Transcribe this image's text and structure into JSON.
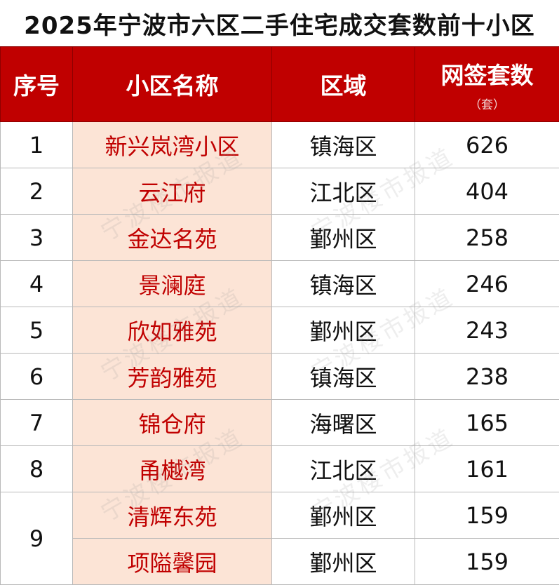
{
  "title": "2025年宁波市六区二手住宅成交套数前十小区",
  "table": {
    "headers": {
      "index": "序号",
      "name": "小区名称",
      "district": "区域",
      "count": "网签套数",
      "count_unit": "（套）"
    },
    "rows": [
      {
        "index": "1",
        "name": "新兴岚湾小区",
        "district": "镇海区",
        "count": "626"
      },
      {
        "index": "2",
        "name": "云江府",
        "district": "江北区",
        "count": "404"
      },
      {
        "index": "3",
        "name": "金达名苑",
        "district": "鄞州区",
        "count": "258"
      },
      {
        "index": "4",
        "name": "景澜庭",
        "district": "镇海区",
        "count": "246"
      },
      {
        "index": "5",
        "name": "欣如雅苑",
        "district": "鄞州区",
        "count": "243"
      },
      {
        "index": "6",
        "name": "芳韵雅苑",
        "district": "镇海区",
        "count": "238"
      },
      {
        "index": "7",
        "name": "锦仓府",
        "district": "海曙区",
        "count": "165"
      },
      {
        "index": "8",
        "name": "甬樾湾",
        "district": "江北区",
        "count": "161"
      },
      {
        "index": "9",
        "name": "清辉东苑",
        "district": "鄞州区",
        "count": "159"
      },
      {
        "index": "",
        "name": "项隘馨园",
        "district": "鄞州区",
        "count": "159"
      }
    ]
  },
  "watermark": "宁波楼市报道",
  "colors": {
    "header_bg": "#c00000",
    "header_text": "#ffffff",
    "name_cell_bg": "#fce4d6",
    "name_text": "#c00000"
  }
}
